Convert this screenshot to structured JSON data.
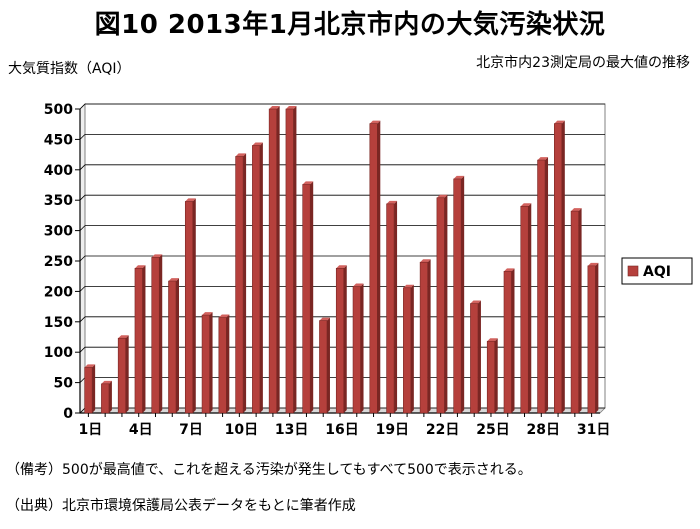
{
  "header": {
    "title": "図10 2013年1月北京市内の大気汚染状況",
    "ylabel": "大気質指数（AQI）",
    "subtitle": "北京市内23測定局の最大値の推移"
  },
  "notes": {
    "remark": "（備考）500が最高値で、これを超える汚染が発生してもすべて500で表示される。",
    "source": "（出典）北京市環境保護局公表データをもとに筆者作成"
  },
  "colors": {
    "bar": "#b5403c",
    "bar_dark": "#7a2623",
    "bar_light": "#d2625e"
  },
  "chart_data": {
    "type": "bar",
    "x": [
      "1日",
      "2日",
      "3日",
      "4日",
      "5日",
      "6日",
      "7日",
      "8日",
      "9日",
      "10日",
      "11日",
      "12日",
      "13日",
      "14日",
      "15日",
      "16日",
      "17日",
      "18日",
      "19日",
      "20日",
      "21日",
      "22日",
      "23日",
      "24日",
      "25日",
      "26日",
      "27日",
      "28日",
      "29日",
      "30日",
      "31日"
    ],
    "x_tick_labels": [
      "1日",
      "4日",
      "7日",
      "10日",
      "13日",
      "16日",
      "19日",
      "22日",
      "25日",
      "28日",
      "31日"
    ],
    "series": [
      {
        "name": "AQI",
        "values": [
          75,
          48,
          123,
          238,
          256,
          217,
          348,
          161,
          157,
          422,
          440,
          500,
          500,
          376,
          152,
          238,
          208,
          476,
          344,
          206,
          248,
          354,
          385,
          180,
          118,
          233,
          340,
          416,
          476,
          332,
          242
        ]
      }
    ],
    "yticks": [
      0,
      50,
      100,
      150,
      200,
      250,
      300,
      350,
      400,
      450,
      500
    ],
    "ylim": [
      0,
      500
    ],
    "grid": true,
    "legend": "right"
  }
}
